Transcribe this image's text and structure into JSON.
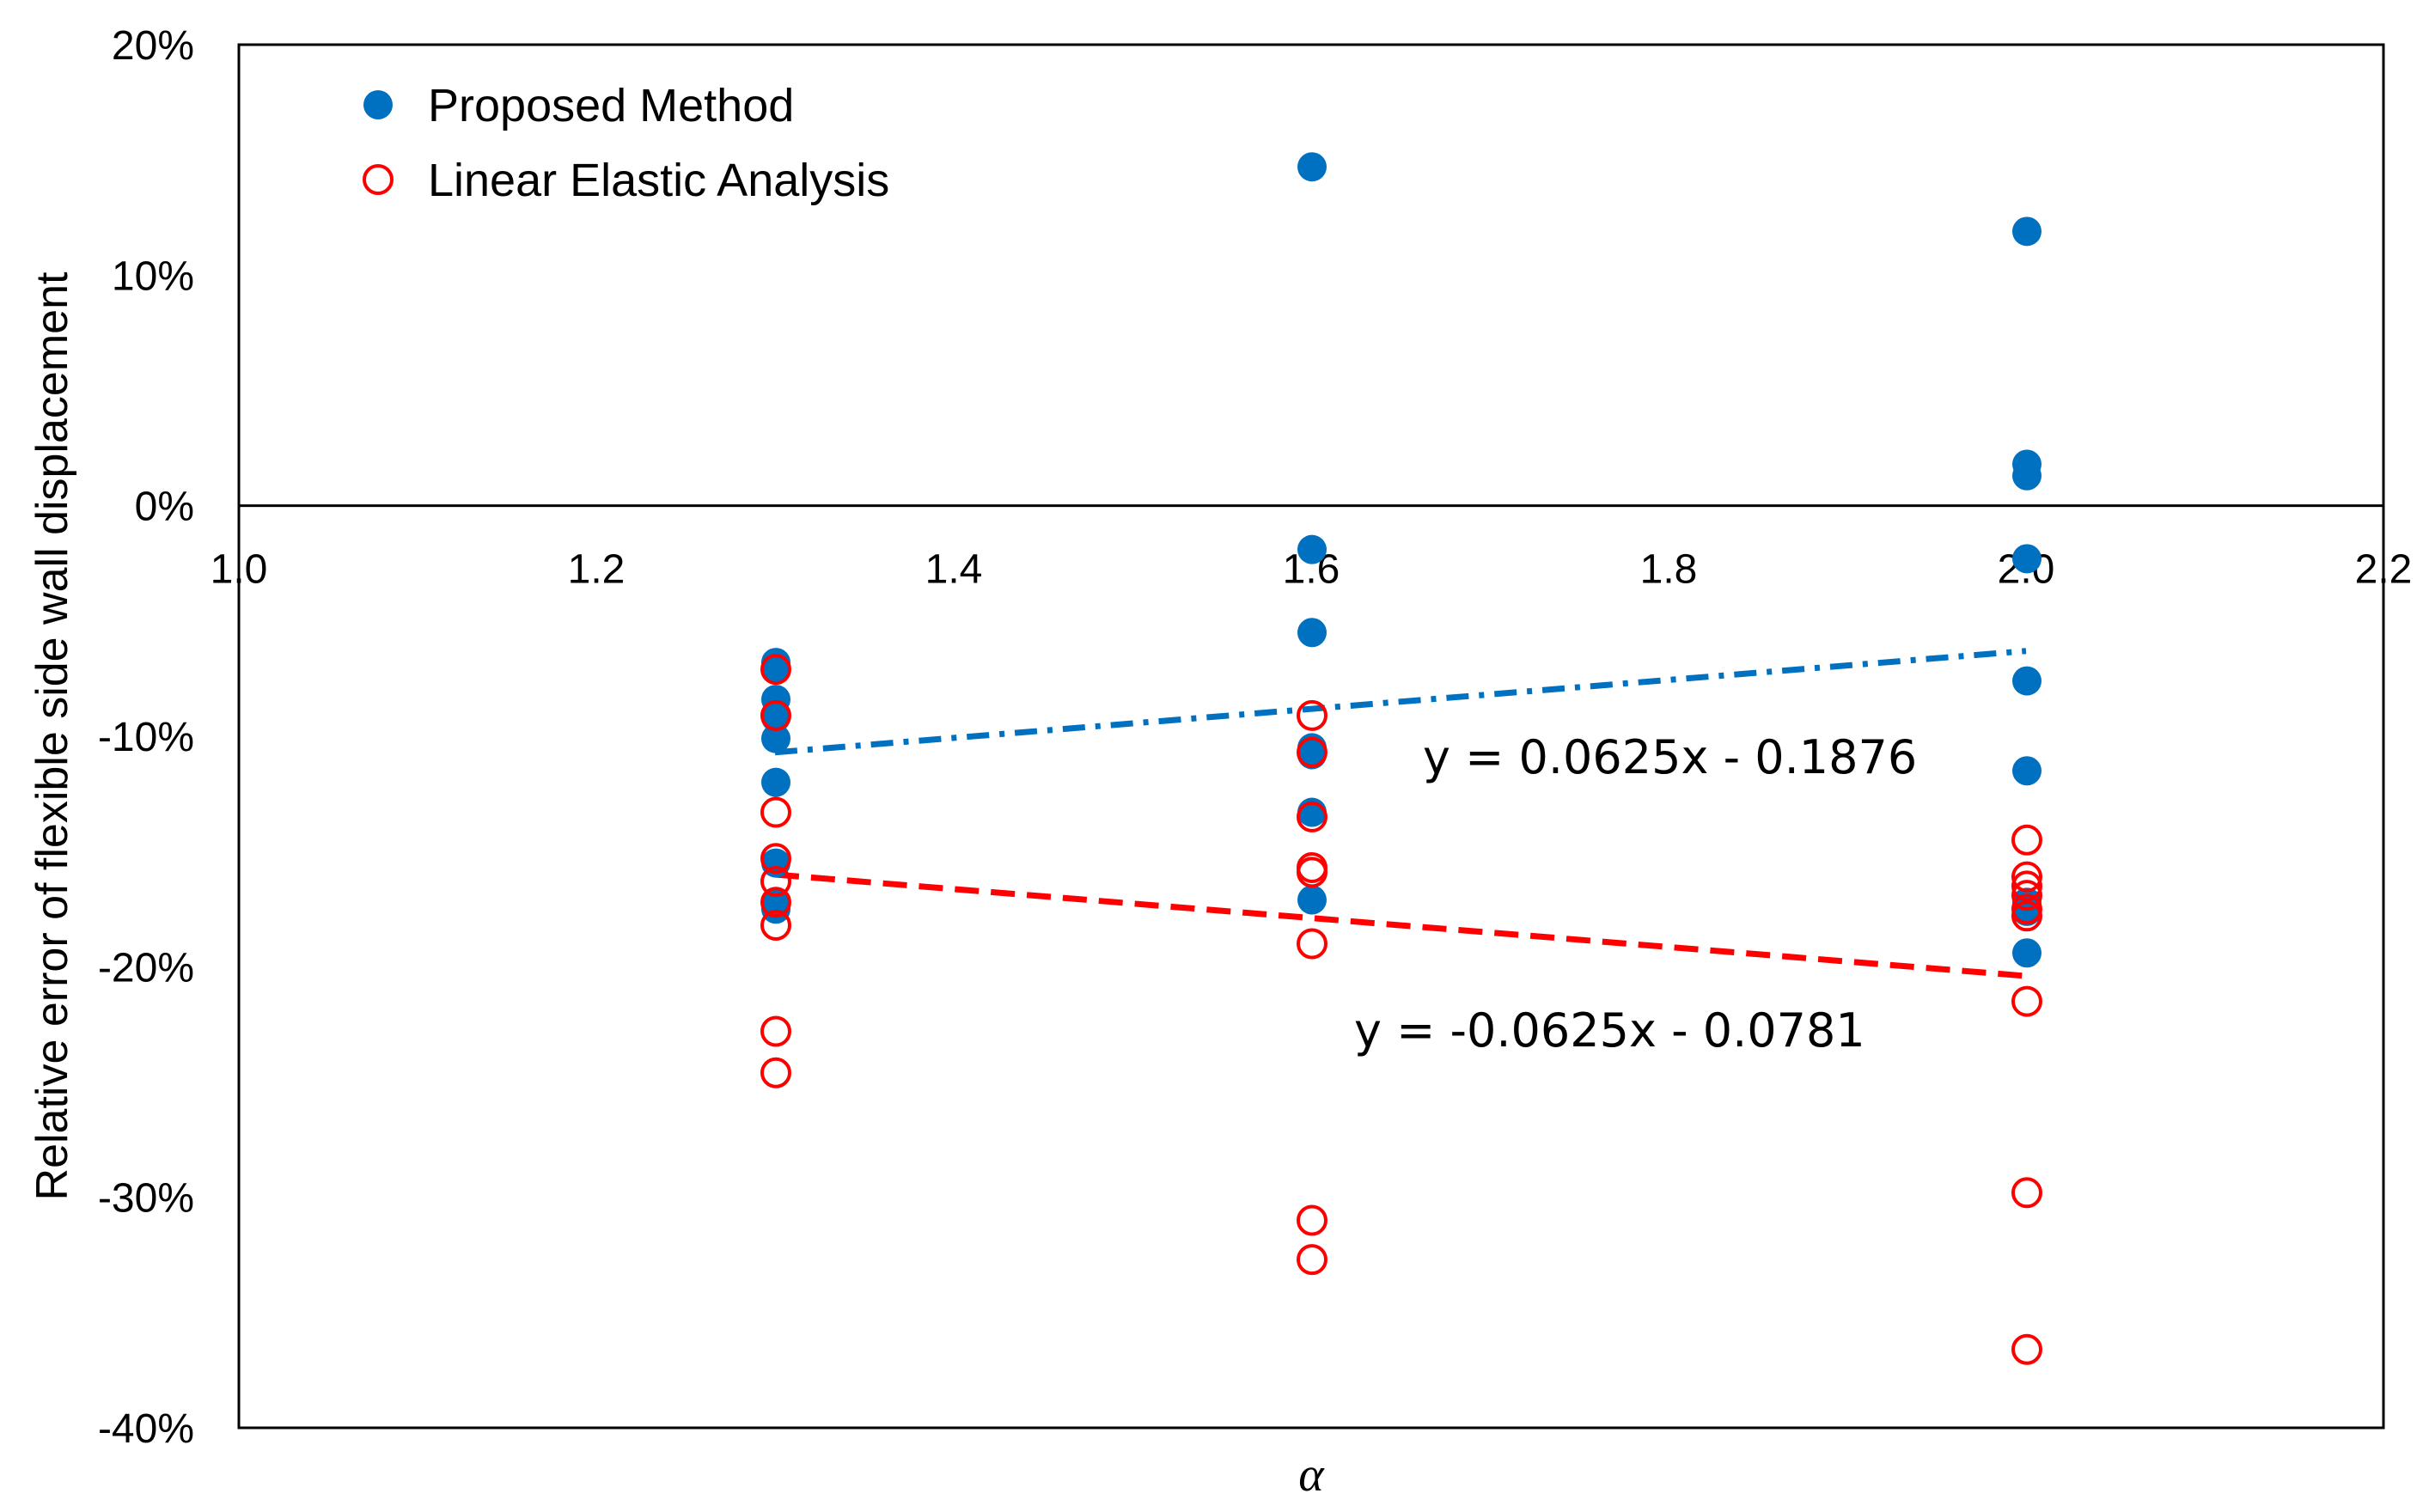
{
  "chart_data": {
    "type": "scatter",
    "title": "",
    "xlabel": "α",
    "ylabel": "Relative error of flexible side wall displacement",
    "xlim": [
      1.0,
      2.2
    ],
    "ylim": [
      -0.4,
      0.2
    ],
    "xticks": [
      1.0,
      1.2,
      1.4,
      1.6,
      1.8,
      2.0,
      2.2
    ],
    "xtick_labels": [
      "1.0",
      "1.2",
      "1.4",
      "1.6",
      "1.8",
      "2.0",
      "2.2"
    ],
    "yticks": [
      0.2,
      0.1,
      0.0,
      -0.1,
      -0.2,
      -0.3,
      -0.4
    ],
    "ytick_labels": [
      "20%",
      "10%",
      "0%",
      "-10%",
      "-20%",
      "-30%",
      "-40%"
    ],
    "legend_position": "top-left",
    "series": [
      {
        "name": "Proposed Method",
        "marker": "filled-circle",
        "color": "#0070C0",
        "points": [
          [
            1.3,
            -0.068
          ],
          [
            1.3,
            -0.071
          ],
          [
            1.3,
            -0.084
          ],
          [
            1.3,
            -0.092
          ],
          [
            1.3,
            -0.101
          ],
          [
            1.3,
            -0.12
          ],
          [
            1.3,
            -0.155
          ],
          [
            1.3,
            -0.173
          ],
          [
            1.3,
            -0.175
          ],
          [
            1.6,
            0.147
          ],
          [
            1.6,
            -0.019
          ],
          [
            1.6,
            -0.055
          ],
          [
            1.6,
            -0.105
          ],
          [
            1.6,
            -0.108
          ],
          [
            1.6,
            -0.133
          ],
          [
            1.6,
            -0.171
          ],
          [
            2.0,
            0.119
          ],
          [
            2.0,
            0.018
          ],
          [
            2.0,
            0.013
          ],
          [
            2.0,
            -0.023
          ],
          [
            2.0,
            -0.076
          ],
          [
            2.0,
            -0.115
          ],
          [
            2.0,
            -0.172
          ],
          [
            2.0,
            -0.176
          ],
          [
            2.0,
            -0.194
          ]
        ]
      },
      {
        "name": "Linear Elastic Analysis",
        "marker": "hollow-circle",
        "color": "#FF0000",
        "points": [
          [
            1.3,
            -0.071
          ],
          [
            1.3,
            -0.091
          ],
          [
            1.3,
            -0.133
          ],
          [
            1.3,
            -0.153
          ],
          [
            1.3,
            -0.163
          ],
          [
            1.3,
            -0.172
          ],
          [
            1.3,
            -0.182
          ],
          [
            1.3,
            -0.228
          ],
          [
            1.3,
            -0.246
          ],
          [
            1.6,
            -0.091
          ],
          [
            1.6,
            -0.107
          ],
          [
            1.6,
            -0.135
          ],
          [
            1.6,
            -0.157
          ],
          [
            1.6,
            -0.159
          ],
          [
            1.6,
            -0.19
          ],
          [
            1.6,
            -0.31
          ],
          [
            1.6,
            -0.327
          ],
          [
            2.0,
            -0.145
          ],
          [
            2.0,
            -0.161
          ],
          [
            2.0,
            -0.165
          ],
          [
            2.0,
            -0.169
          ],
          [
            2.0,
            -0.175
          ],
          [
            2.0,
            -0.178
          ],
          [
            2.0,
            -0.215
          ],
          [
            2.0,
            -0.298
          ],
          [
            2.0,
            -0.366
          ]
        ]
      }
    ],
    "trendlines": [
      {
        "series": "Proposed Method",
        "style": "dash-dot",
        "color": "#0070C0",
        "x_range": [
          1.3,
          2.0
        ],
        "y_range": [
          -0.107,
          -0.063
        ],
        "equation": "y = 0.0625x - 0.1876"
      },
      {
        "series": "Linear Elastic Analysis",
        "style": "dashed",
        "color": "#FF0000",
        "x_range": [
          1.3,
          2.0
        ],
        "y_range": [
          -0.16,
          -0.204
        ],
        "equation": "y = -0.0625x - 0.0781"
      }
    ]
  }
}
